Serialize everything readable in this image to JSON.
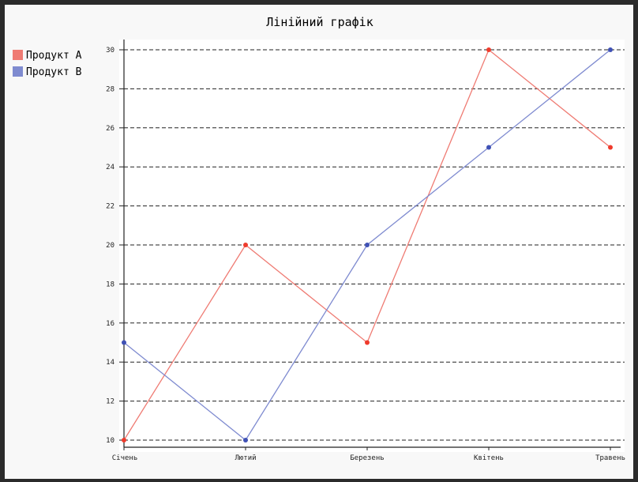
{
  "chart_data": {
    "type": "line",
    "title": "Лінійний графік",
    "categories": [
      "Січень",
      "Лютий",
      "Березень",
      "Квітень",
      "Травень"
    ],
    "series": [
      {
        "name": "Продукт A",
        "values": [
          10,
          20,
          15,
          30,
          25
        ],
        "color": "#ef7b73",
        "marker_color": "#ef3b2c"
      },
      {
        "name": "Продукт B",
        "values": [
          15,
          10,
          20,
          25,
          30
        ],
        "color": "#7f8bd0",
        "marker_color": "#3f51b5"
      }
    ],
    "ylim": [
      10,
      30
    ],
    "yticks": [
      10,
      12,
      14,
      16,
      18,
      20,
      22,
      24,
      26,
      28,
      30
    ],
    "grid": "horizontal-dashed",
    "legend": "top-left"
  }
}
